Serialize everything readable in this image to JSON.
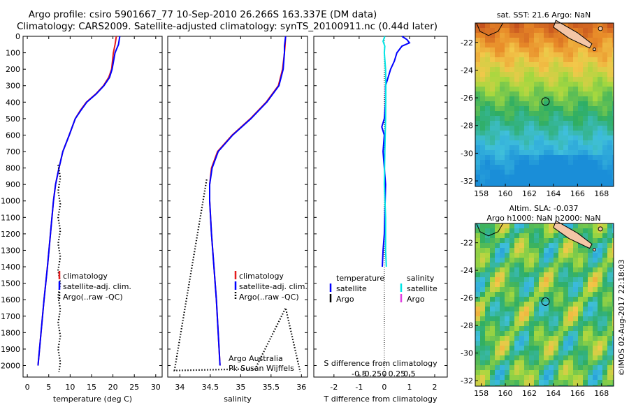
{
  "title_line1": "Argo profile: csiro 5901667_77 10-Sep-2010 26.266S 163.337E (DM data)",
  "title_line2": "Climatology: CARS2009. Satellite-adjusted climatology: synTS_20100911.nc (0.44d later)",
  "footer_credit": "©IMOS 02-Aug-2017 22:18:03",
  "colors": {
    "climatology": "#e41a1c",
    "satellite": "#0000ff",
    "argo": "#000000",
    "sal_satellite": "#00e5e5",
    "sal_argo": "#e040e0"
  },
  "chart_data": [
    {
      "type": "line",
      "id": "temperature",
      "xlabel": "temperature (deg C)",
      "ylabel": "",
      "xlim": [
        -1,
        31.5
      ],
      "ylim": [
        2070,
        0
      ],
      "xticks": [
        0,
        5,
        10,
        15,
        20,
        25,
        30
      ],
      "yticks": [
        0,
        100,
        200,
        300,
        400,
        500,
        600,
        700,
        800,
        900,
        1000,
        1100,
        1200,
        1300,
        1400,
        1500,
        1600,
        1700,
        1800,
        1900,
        2000
      ],
      "legend": [
        "climatology",
        "satellite-adj. clim.",
        "Argo(..raw -QC)"
      ],
      "series": [
        {
          "name": "climatology",
          "style": "solid",
          "color": "climatology",
          "points": [
            [
              20.8,
              0
            ],
            [
              20.5,
              50
            ],
            [
              20.1,
              100
            ],
            [
              19.7,
              200
            ],
            [
              19.0,
              250
            ],
            [
              17.8,
              300
            ],
            [
              16.0,
              350
            ],
            [
              13.8,
              400
            ],
            [
              12.4,
              450
            ],
            [
              11.2,
              500
            ],
            [
              9.8,
              600
            ],
            [
              8.3,
              700
            ],
            [
              7.4,
              800
            ],
            [
              6.6,
              900
            ],
            [
              6.1,
              1000
            ],
            [
              5.4,
              1200
            ],
            [
              4.7,
              1400
            ],
            [
              3.9,
              1600
            ],
            [
              3.2,
              1800
            ],
            [
              2.5,
              2000
            ]
          ]
        },
        {
          "name": "satellite-adj. clim.",
          "style": "solid",
          "color": "satellite",
          "points": [
            [
              21.6,
              0
            ],
            [
              21.3,
              50
            ],
            [
              20.5,
              100
            ],
            [
              19.8,
              200
            ],
            [
              19.2,
              250
            ],
            [
              17.9,
              300
            ],
            [
              16.1,
              350
            ],
            [
              13.9,
              400
            ],
            [
              12.5,
              450
            ],
            [
              11.2,
              500
            ],
            [
              9.8,
              600
            ],
            [
              8.3,
              700
            ],
            [
              7.4,
              800
            ],
            [
              6.6,
              900
            ],
            [
              6.1,
              1000
            ],
            [
              5.4,
              1200
            ],
            [
              4.7,
              1400
            ],
            [
              3.9,
              1600
            ],
            [
              3.2,
              1800
            ],
            [
              2.5,
              2000
            ]
          ]
        },
        {
          "name": "Argo(..raw -QC)",
          "style": "dotted",
          "color": "argo",
          "points": [
            [
              7.2,
              780
            ],
            [
              7.7,
              860
            ],
            [
              7.2,
              940
            ],
            [
              7.7,
              1020
            ],
            [
              7.2,
              1100
            ],
            [
              7.7,
              1180
            ],
            [
              7.2,
              1260
            ],
            [
              7.7,
              1340
            ],
            [
              7.2,
              1420
            ],
            [
              7.7,
              1500
            ],
            [
              7.2,
              1580
            ],
            [
              7.7,
              1660
            ],
            [
              7.2,
              1740
            ],
            [
              7.7,
              1820
            ],
            [
              7.2,
              1900
            ],
            [
              7.7,
              1980
            ],
            [
              7.4,
              2040
            ]
          ]
        }
      ]
    },
    {
      "type": "line",
      "id": "salinity",
      "xlabel": "salinity",
      "ylabel": "",
      "xlim": [
        33.8,
        36.1
      ],
      "ylim": [
        2070,
        0
      ],
      "xticks": [
        34,
        34.5,
        35,
        35.5,
        36
      ],
      "legend": [
        "climatology",
        "satellite-adj. clim.",
        "Argo(..raw -QC)"
      ],
      "annotation": [
        "Argo Australia",
        "PI: Susan Wijffels"
      ],
      "series": [
        {
          "name": "climatology",
          "style": "solid",
          "color": "climatology",
          "points": [
            [
              35.74,
              0
            ],
            [
              35.73,
              60
            ],
            [
              35.72,
              100
            ],
            [
              35.69,
              200
            ],
            [
              35.62,
              300
            ],
            [
              35.42,
              400
            ],
            [
              35.16,
              500
            ],
            [
              34.86,
              600
            ],
            [
              34.62,
              700
            ],
            [
              34.52,
              800
            ],
            [
              34.49,
              900
            ],
            [
              34.49,
              1000
            ],
            [
              34.52,
              1200
            ],
            [
              34.56,
              1400
            ],
            [
              34.6,
              1600
            ],
            [
              34.63,
              1800
            ],
            [
              34.66,
              2000
            ]
          ]
        },
        {
          "name": "satellite-adj. clim.",
          "style": "solid",
          "color": "satellite",
          "points": [
            [
              35.74,
              0
            ],
            [
              35.72,
              60
            ],
            [
              35.72,
              100
            ],
            [
              35.7,
              200
            ],
            [
              35.63,
              300
            ],
            [
              35.43,
              400
            ],
            [
              35.17,
              500
            ],
            [
              34.87,
              600
            ],
            [
              34.63,
              700
            ],
            [
              34.53,
              800
            ],
            [
              34.49,
              900
            ],
            [
              34.49,
              1000
            ],
            [
              34.52,
              1200
            ],
            [
              34.56,
              1400
            ],
            [
              34.6,
              1600
            ],
            [
              34.63,
              1800
            ],
            [
              34.66,
              2000
            ]
          ]
        },
        {
          "name": "Argo(..raw -QC)",
          "style": "dotted",
          "color": "argo",
          "points": [
            [
              34.44,
              870
            ],
            [
              33.91,
              2030
            ],
            [
              35.24,
              2020
            ],
            [
              35.74,
              1650
            ],
            [
              35.98,
              2040
            ]
          ]
        }
      ]
    },
    {
      "type": "line",
      "id": "difference",
      "xlabel": "T difference from climatology",
      "xlabel2": "S difference from climatology",
      "xlim": [
        -2.8,
        2.5
      ],
      "ylim": [
        2070,
        0
      ],
      "xticks": [
        -2,
        -1,
        0,
        1,
        2
      ],
      "xticks2": [
        "-0.5",
        "-0.25",
        "0",
        "0.25",
        "0.5"
      ],
      "legend_temperature": {
        "title": "temperature",
        "items": [
          "satellite",
          "Argo"
        ]
      },
      "legend_salinity": {
        "title": "salinity",
        "items": [
          "satellite",
          "Argo"
        ]
      },
      "series": [
        {
          "name": "temperature satellite",
          "style": "solid",
          "color": "satellite",
          "points": [
            [
              0.7,
              0
            ],
            [
              0.9,
              20
            ],
            [
              1.0,
              40
            ],
            [
              0.7,
              60
            ],
            [
              0.5,
              100
            ],
            [
              0.4,
              150
            ],
            [
              0.25,
              200
            ],
            [
              0.15,
              250
            ],
            [
              0.05,
              300
            ],
            [
              0.05,
              400
            ],
            [
              0.0,
              500
            ],
            [
              -0.1,
              550
            ],
            [
              0.0,
              600
            ],
            [
              -0.05,
              700
            ],
            [
              0.0,
              800
            ],
            [
              0.05,
              900
            ],
            [
              0.0,
              1200
            ],
            [
              -0.05,
              1300
            ],
            [
              -0.08,
              1400
            ]
          ]
        },
        {
          "name": "salinity satellite",
          "style": "solid",
          "color": "sal_satellite",
          "points": [
            [
              0.02,
              0
            ],
            [
              -0.05,
              30
            ],
            [
              0.02,
              60
            ],
            [
              0.0,
              100
            ],
            [
              0.05,
              200
            ],
            [
              0.06,
              300
            ],
            [
              0.05,
              500
            ],
            [
              0.02,
              700
            ],
            [
              0.0,
              900
            ],
            [
              0.05,
              1100
            ],
            [
              0.05,
              1300
            ],
            [
              0.08,
              1400
            ]
          ]
        }
      ]
    },
    {
      "type": "heatmap",
      "id": "sst",
      "title": "sat. SST: 21.6 Argo: NaN",
      "xticks": [
        158,
        160,
        162,
        164,
        166,
        168
      ],
      "yticks": [
        -22,
        -24,
        -26,
        -28,
        -30,
        -32
      ],
      "xlim": [
        157.5,
        169
      ],
      "ylim": [
        -20.6,
        -32.4
      ],
      "marker": [
        163.337,
        -26.266
      ]
    },
    {
      "type": "heatmap",
      "id": "sla",
      "title_line1": "Altim. SLA: -0.037",
      "title_line2": "Argo h1000: NaN h2000: NaN",
      "xticks": [
        158,
        160,
        162,
        164,
        166,
        168
      ],
      "yticks": [
        -22,
        -24,
        -26,
        -28,
        -30,
        -32
      ],
      "xlim": [
        157.5,
        169
      ],
      "ylim": [
        -20.6,
        -32.4
      ],
      "marker": [
        163.337,
        -26.266
      ]
    }
  ]
}
